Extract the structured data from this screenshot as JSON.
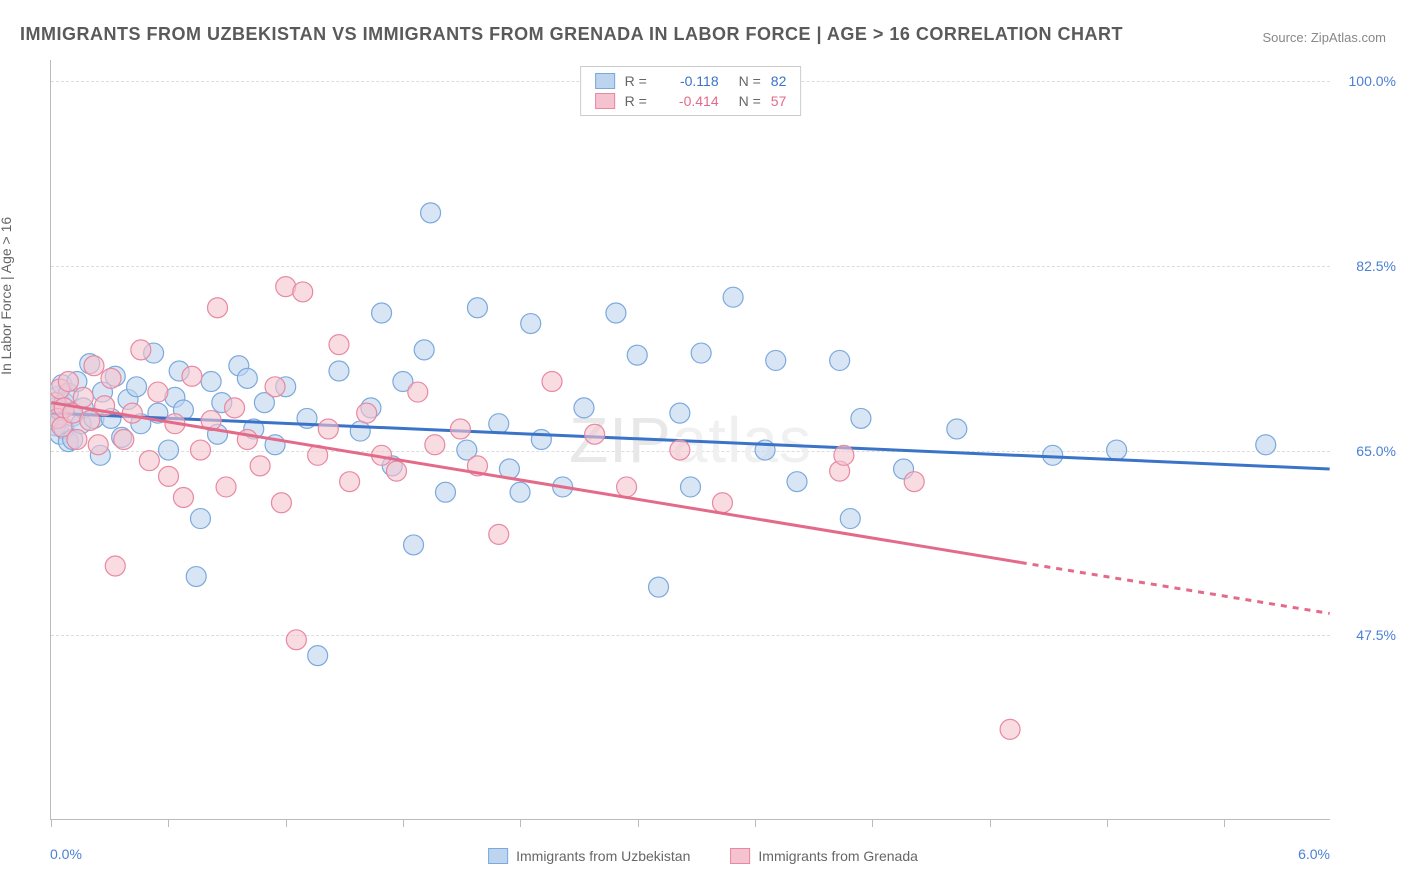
{
  "title": "IMMIGRANTS FROM UZBEKISTAN VS IMMIGRANTS FROM GRENADA IN LABOR FORCE | AGE > 16 CORRELATION CHART",
  "source": "Source: ZipAtlas.com",
  "y_axis_label": "In Labor Force | Age > 16",
  "watermark_zip": "ZIP",
  "watermark_atlas": "atlas",
  "x_ticks_label_left": "0.0%",
  "x_ticks_label_right": "6.0%",
  "chart": {
    "type": "scatter_with_regression",
    "background_color": "#ffffff",
    "grid_color": "#dddddd",
    "axis_color": "#bbbbbb",
    "xlim": [
      0.0,
      6.0
    ],
    "ylim": [
      30.0,
      102.0
    ],
    "y_ticks": [
      {
        "value": 100.0,
        "label": "100.0%"
      },
      {
        "value": 82.5,
        "label": "82.5%"
      },
      {
        "value": 65.0,
        "label": "65.0%"
      },
      {
        "value": 47.5,
        "label": "47.5%"
      }
    ],
    "x_tick_positions": [
      0.0,
      0.55,
      1.1,
      1.65,
      2.2,
      2.75,
      3.3,
      3.85,
      4.4,
      4.95,
      5.5
    ],
    "series": [
      {
        "key": "uzbekistan",
        "label": "Immigrants from Uzbekistan",
        "marker_fill": "#bcd4ef",
        "marker_stroke": "#7ba9dc",
        "marker_fill_opacity": 0.6,
        "marker_radius": 10,
        "regression_color": "#3b73c8",
        "regression_width": 3,
        "r": "-0.118",
        "n": "82",
        "regression": {
          "x1": 0.0,
          "y1": 68.5,
          "x2": 6.0,
          "y2": 63.2
        },
        "points": [
          [
            0.02,
            69.0
          ],
          [
            0.02,
            68.2
          ],
          [
            0.02,
            67.3
          ],
          [
            0.03,
            70.1
          ],
          [
            0.04,
            66.5
          ],
          [
            0.04,
            68.8
          ],
          [
            0.05,
            71.2
          ],
          [
            0.06,
            67.0
          ],
          [
            0.06,
            69.5
          ],
          [
            0.08,
            65.8
          ],
          [
            0.08,
            70.4
          ],
          [
            0.1,
            68.2
          ],
          [
            0.1,
            66.0
          ],
          [
            0.12,
            71.5
          ],
          [
            0.14,
            67.5
          ],
          [
            0.15,
            69.0
          ],
          [
            0.18,
            73.2
          ],
          [
            0.2,
            68.0
          ],
          [
            0.23,
            64.5
          ],
          [
            0.24,
            70.5
          ],
          [
            0.28,
            68.0
          ],
          [
            0.3,
            72.0
          ],
          [
            0.33,
            66.2
          ],
          [
            0.36,
            69.8
          ],
          [
            0.4,
            71.0
          ],
          [
            0.42,
            67.5
          ],
          [
            0.48,
            74.2
          ],
          [
            0.5,
            68.5
          ],
          [
            0.55,
            65.0
          ],
          [
            0.58,
            70.0
          ],
          [
            0.6,
            72.5
          ],
          [
            0.62,
            68.8
          ],
          [
            0.68,
            53.0
          ],
          [
            0.7,
            58.5
          ],
          [
            0.75,
            71.5
          ],
          [
            0.78,
            66.5
          ],
          [
            0.8,
            69.5
          ],
          [
            0.88,
            73.0
          ],
          [
            0.92,
            71.8
          ],
          [
            0.95,
            67.0
          ],
          [
            1.0,
            69.5
          ],
          [
            1.05,
            65.5
          ],
          [
            1.1,
            71.0
          ],
          [
            1.2,
            68.0
          ],
          [
            1.25,
            45.5
          ],
          [
            1.35,
            72.5
          ],
          [
            1.45,
            66.8
          ],
          [
            1.5,
            69.0
          ],
          [
            1.55,
            78.0
          ],
          [
            1.6,
            63.5
          ],
          [
            1.65,
            71.5
          ],
          [
            1.7,
            56.0
          ],
          [
            1.75,
            74.5
          ],
          [
            1.78,
            87.5
          ],
          [
            1.85,
            61.0
          ],
          [
            1.95,
            65.0
          ],
          [
            2.0,
            78.5
          ],
          [
            2.1,
            67.5
          ],
          [
            2.15,
            63.2
          ],
          [
            2.2,
            61.0
          ],
          [
            2.25,
            77.0
          ],
          [
            2.3,
            66.0
          ],
          [
            2.4,
            61.5
          ],
          [
            2.5,
            69.0
          ],
          [
            2.65,
            78.0
          ],
          [
            2.75,
            74.0
          ],
          [
            2.85,
            52.0
          ],
          [
            2.95,
            68.5
          ],
          [
            3.0,
            61.5
          ],
          [
            3.05,
            74.2
          ],
          [
            3.2,
            79.5
          ],
          [
            3.35,
            65.0
          ],
          [
            3.4,
            73.5
          ],
          [
            3.5,
            62.0
          ],
          [
            3.7,
            73.5
          ],
          [
            3.75,
            58.5
          ],
          [
            3.8,
            68.0
          ],
          [
            4.0,
            63.2
          ],
          [
            4.25,
            67.0
          ],
          [
            4.7,
            64.5
          ],
          [
            5.0,
            65.0
          ],
          [
            5.7,
            65.5
          ]
        ]
      },
      {
        "key": "grenada",
        "label": "Immigrants from Grenada",
        "marker_fill": "#f5c3cf",
        "marker_stroke": "#e789a1",
        "marker_fill_opacity": 0.6,
        "marker_radius": 10,
        "regression_color": "#e46a8a",
        "regression_width": 3,
        "regression_dash_after_x": 4.55,
        "r": "-0.414",
        "n": "57",
        "regression": {
          "x1": 0.0,
          "y1": 69.5,
          "x2": 6.0,
          "y2": 49.5
        },
        "points": [
          [
            0.02,
            69.5
          ],
          [
            0.03,
            68.0
          ],
          [
            0.04,
            70.8
          ],
          [
            0.05,
            67.2
          ],
          [
            0.06,
            69.0
          ],
          [
            0.08,
            71.5
          ],
          [
            0.1,
            68.5
          ],
          [
            0.12,
            66.0
          ],
          [
            0.15,
            70.0
          ],
          [
            0.18,
            67.8
          ],
          [
            0.2,
            73.0
          ],
          [
            0.22,
            65.5
          ],
          [
            0.25,
            69.2
          ],
          [
            0.28,
            71.8
          ],
          [
            0.3,
            54.0
          ],
          [
            0.34,
            66.0
          ],
          [
            0.38,
            68.5
          ],
          [
            0.42,
            74.5
          ],
          [
            0.46,
            64.0
          ],
          [
            0.5,
            70.5
          ],
          [
            0.55,
            62.5
          ],
          [
            0.58,
            67.5
          ],
          [
            0.62,
            60.5
          ],
          [
            0.66,
            72.0
          ],
          [
            0.7,
            65.0
          ],
          [
            0.75,
            67.8
          ],
          [
            0.78,
            78.5
          ],
          [
            0.82,
            61.5
          ],
          [
            0.86,
            69.0
          ],
          [
            0.92,
            66.0
          ],
          [
            0.98,
            63.5
          ],
          [
            1.05,
            71.0
          ],
          [
            1.08,
            60.0
          ],
          [
            1.1,
            80.5
          ],
          [
            1.15,
            47.0
          ],
          [
            1.18,
            80.0
          ],
          [
            1.25,
            64.5
          ],
          [
            1.3,
            67.0
          ],
          [
            1.35,
            75.0
          ],
          [
            1.4,
            62.0
          ],
          [
            1.48,
            68.5
          ],
          [
            1.55,
            64.5
          ],
          [
            1.62,
            63.0
          ],
          [
            1.72,
            70.5
          ],
          [
            1.8,
            65.5
          ],
          [
            1.92,
            67.0
          ],
          [
            2.0,
            63.5
          ],
          [
            2.1,
            57.0
          ],
          [
            2.35,
            71.5
          ],
          [
            2.55,
            66.5
          ],
          [
            2.7,
            61.5
          ],
          [
            2.95,
            65.0
          ],
          [
            3.15,
            60.0
          ],
          [
            3.7,
            63.0
          ],
          [
            3.72,
            64.5
          ],
          [
            4.05,
            62.0
          ],
          [
            4.5,
            38.5
          ]
        ]
      }
    ]
  },
  "legend_top": {
    "r_prefix": "R =",
    "n_prefix": "N ="
  }
}
